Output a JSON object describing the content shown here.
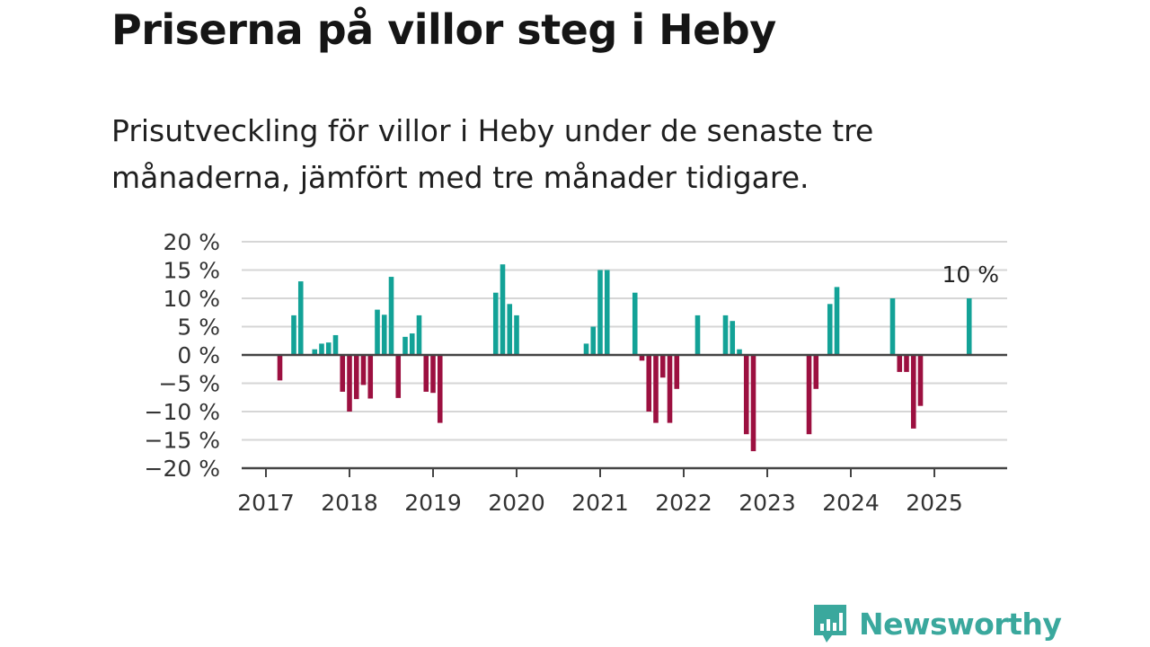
{
  "title": "Priserna på villor steg i Heby",
  "subtitle": "Prisutveckling för villor i Heby under de senaste tre månaderna, jämfört med tre månader tidigare.",
  "brand": {
    "name": "Newsworthy"
  },
  "colors": {
    "positive": "#13a297",
    "negative": "#9c1040",
    "axis": "#444444",
    "grid": "#d6d6d6",
    "brand": "#3aa89d"
  },
  "chart_data": {
    "type": "bar",
    "xlabel": "",
    "ylabel": "",
    "ylim": [
      -20,
      20
    ],
    "y_ticks": [
      20,
      15,
      10,
      5,
      0,
      -5,
      -10,
      -15,
      -20
    ],
    "y_tick_labels": [
      "20 %",
      "15 %",
      "10 %",
      "5 %",
      "0 %",
      "−5 %",
      "−10 %",
      "−15 %",
      "−20 %"
    ],
    "x_ticks": [
      "2017",
      "2018",
      "2019",
      "2020",
      "2021",
      "2022",
      "2023",
      "2024",
      "2025"
    ],
    "grid": true,
    "positive_color": "#13a297",
    "negative_color": "#9c1040",
    "x": [
      "2017-03",
      "2017-05",
      "2017-06",
      "2017-08",
      "2017-09",
      "2017-10",
      "2017-11",
      "2017-12",
      "2018-01",
      "2018-02",
      "2018-03",
      "2018-04",
      "2018-05",
      "2018-06",
      "2018-07",
      "2018-08",
      "2018-09",
      "2018-10",
      "2018-11",
      "2018-12",
      "2019-01",
      "2019-02",
      "2019-10",
      "2019-11",
      "2019-12",
      "2020-01",
      "2020-11",
      "2020-12",
      "2021-01",
      "2021-02",
      "2021-06",
      "2021-07",
      "2021-08",
      "2021-09",
      "2021-10",
      "2021-11",
      "2021-12",
      "2022-03",
      "2022-07",
      "2022-08",
      "2022-09",
      "2022-10",
      "2022-11",
      "2023-07",
      "2023-08",
      "2023-10",
      "2023-11",
      "2024-07",
      "2024-08",
      "2024-09",
      "2024-10",
      "2024-11",
      "2025-06"
    ],
    "values": [
      -4.5,
      7,
      13,
      1,
      2,
      2.2,
      3.5,
      -6.5,
      -10,
      -7.8,
      -5.3,
      -7.7,
      8,
      7.1,
      13.8,
      -7.6,
      3.2,
      3.8,
      7,
      -6.5,
      -6.7,
      -12,
      11,
      16,
      9,
      7,
      2,
      5,
      15,
      15,
      11,
      -1,
      -10,
      -12,
      -4,
      -12,
      -6,
      7,
      7,
      6,
      1,
      -14,
      -17,
      -14,
      -6,
      9,
      12,
      10,
      -3,
      -3,
      -13,
      -9,
      10
    ],
    "annotations": [
      {
        "x": "2025-06",
        "label": "10 %"
      }
    ]
  }
}
